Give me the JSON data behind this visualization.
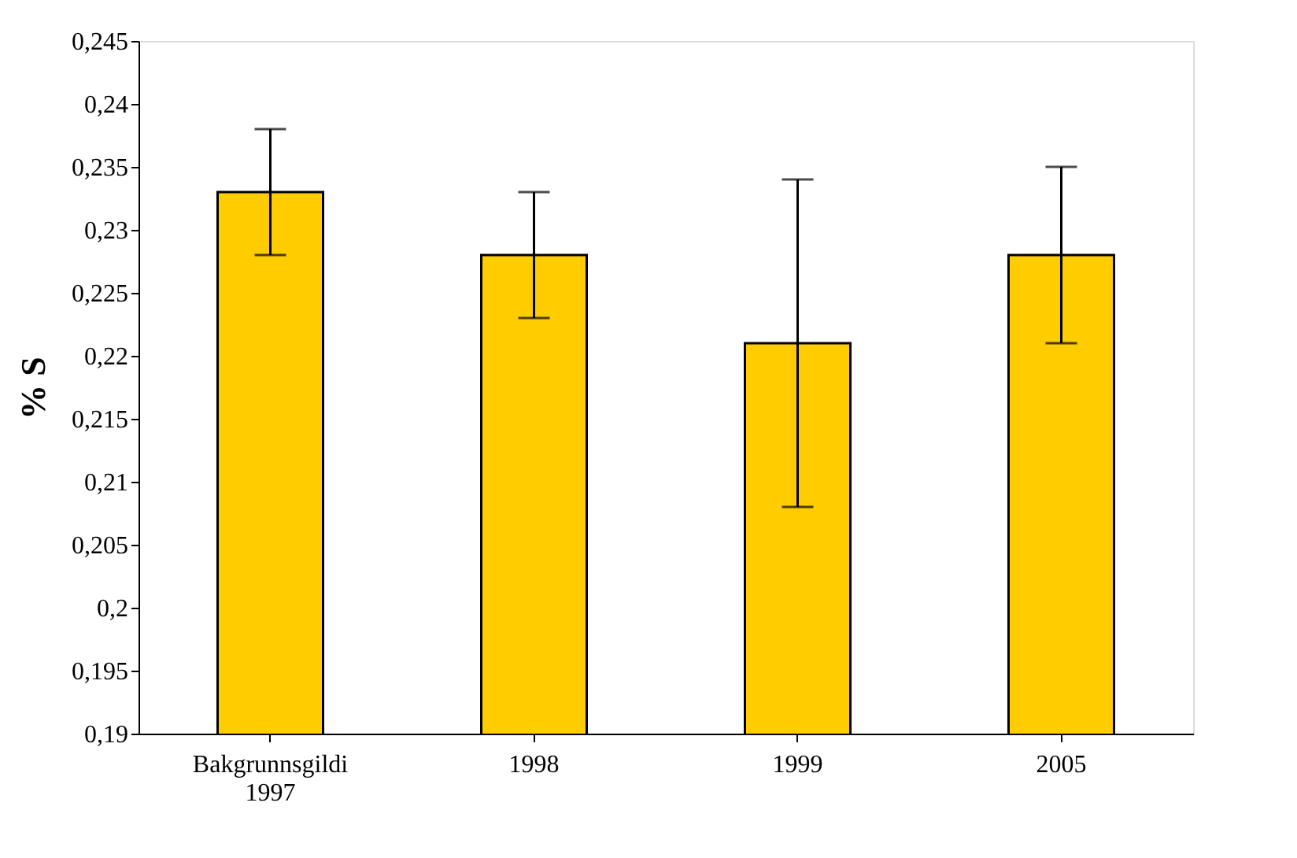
{
  "chart_data": {
    "type": "bar",
    "ylabel": "% S",
    "categories": [
      "Bakgrunnsgildi\n1997",
      "1998",
      "1999",
      "2005"
    ],
    "values": [
      0.233,
      0.228,
      0.221,
      0.228
    ],
    "errors": [
      0.005,
      0.005,
      0.013,
      0.007
    ],
    "color": "#ffcc00",
    "ylim": [
      0.19,
      0.245
    ],
    "yticks": [
      {
        "value": 0.19,
        "label": "0,19"
      },
      {
        "value": 0.195,
        "label": "0,195"
      },
      {
        "value": 0.2,
        "label": "0,2"
      },
      {
        "value": 0.205,
        "label": "0,205"
      },
      {
        "value": 0.21,
        "label": "0,21"
      },
      {
        "value": 0.215,
        "label": "0,215"
      },
      {
        "value": 0.22,
        "label": "0,22"
      },
      {
        "value": 0.225,
        "label": "0,225"
      },
      {
        "value": 0.23,
        "label": "0,23"
      },
      {
        "value": 0.235,
        "label": "0,235"
      },
      {
        "value": 0.24,
        "label": "0,24"
      },
      {
        "value": 0.245,
        "label": "0,245"
      }
    ],
    "grid": false
  }
}
